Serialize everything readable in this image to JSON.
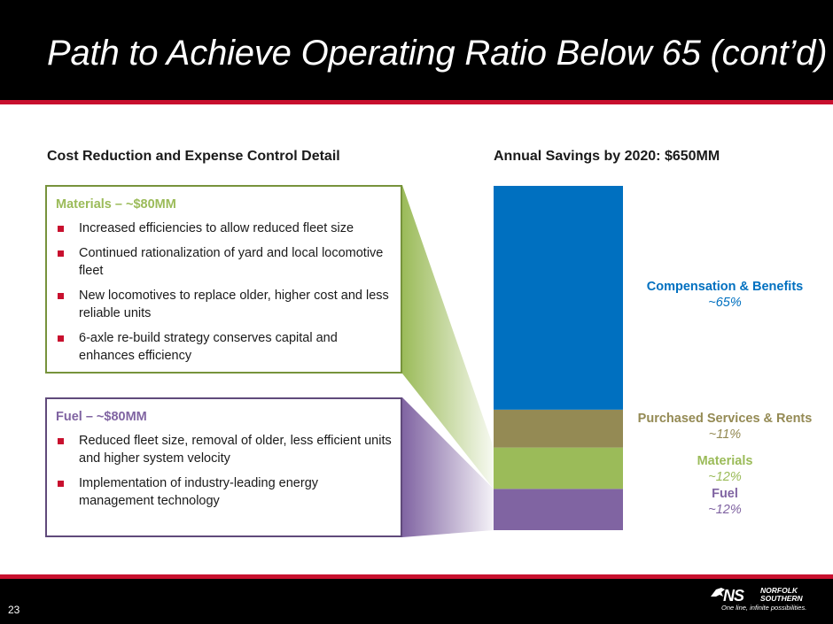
{
  "header": {
    "title": "Path to Achieve Operating Ratio Below 65 (cont’d)"
  },
  "left": {
    "title": "Cost Reduction and Expense Control Detail",
    "materials": {
      "heading": "Materials – ~$80MM",
      "bullets": [
        "Increased efficiencies to allow reduced fleet size",
        "Continued rationalization of yard and local locomotive fleet",
        "New locomotives to replace older, higher cost and less reliable units",
        "6-axle re-build strategy conserves capital and enhances efficiency"
      ]
    },
    "fuel": {
      "heading": "Fuel – ~$80MM",
      "bullets": [
        "Reduced fleet size, removal of older, less efficient units and higher system velocity",
        "Implementation of industry-leading energy management technology"
      ]
    }
  },
  "chart_data": {
    "type": "bar",
    "stacked": true,
    "title": "Annual Savings by 2020: $650MM",
    "total_label": "$650MM",
    "unit": "percent of annual savings",
    "categories": [
      "Annual Savings by 2020"
    ],
    "series": [
      {
        "name": "Fuel",
        "display": "~12%",
        "value": 12,
        "color": "#8064a2"
      },
      {
        "name": "Materials",
        "display": "~12%",
        "value": 12,
        "color": "#9bbb59"
      },
      {
        "name": "Purchased Services & Rents",
        "display": "~11%",
        "value": 11,
        "color": "#948a54"
      },
      {
        "name": "Compensation & Benefits",
        "display": "~65%",
        "value": 65,
        "color": "#0070c0"
      }
    ]
  },
  "colors": {
    "accent_red": "#c8102e",
    "materials_green": "#77933c",
    "fuel_purple": "#604a7b",
    "comp_blue": "#0070c0",
    "services_olive": "#948a54",
    "materials_label": "#9bbb59",
    "fuel_label": "#8064a2"
  },
  "footer": {
    "page_number": "23",
    "logo_mark": "NS",
    "logo_name_1": "NORFOLK",
    "logo_name_2": "SOUTHERN",
    "logo_tagline": "One line, infinite possibilities.",
    "logo_icon": "norfolk-southern-horse-icon"
  }
}
